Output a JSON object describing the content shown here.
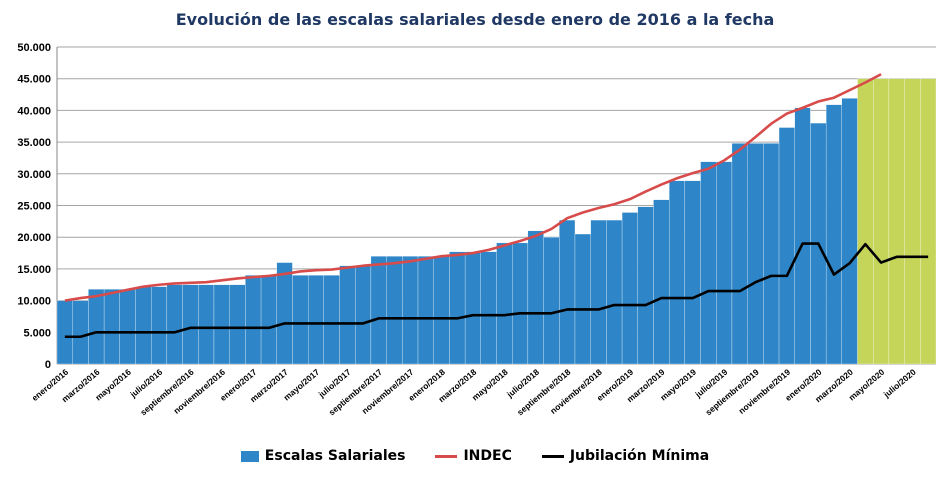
{
  "chart_data": {
    "type": "bar",
    "title": "Evolución de las escalas salariales desde enero de 2016 a la fecha",
    "xlabel": "",
    "ylabel": "",
    "ylim": [
      0,
      50000
    ],
    "yticks": [
      "0",
      "5.000",
      "10.000",
      "15.000",
      "20.000",
      "25.000",
      "30.000",
      "35.000",
      "40.000",
      "45.000",
      "50.000"
    ],
    "y_tick_values": [
      0,
      5000,
      10000,
      15000,
      20000,
      25000,
      30000,
      35000,
      40000,
      45000,
      50000
    ],
    "grid": true,
    "legend_position": "bottom",
    "categories": [
      "enero/2016",
      "febrero/2016",
      "marzo/2016",
      "abril/2016",
      "mayo/2016",
      "junio/2016",
      "julio/2016",
      "agosto/2016",
      "septiembre/2016",
      "octubre/2016",
      "noviembre/2016",
      "diciembre/2016",
      "enero/2017",
      "febrero/2017",
      "marzo/2017",
      "abril/2017",
      "mayo/2017",
      "junio/2017",
      "julio/2017",
      "agosto/2017",
      "septiembre/2017",
      "octubre/2017",
      "noviembre/2017",
      "diciembre/2017",
      "enero/2018",
      "febrero/2018",
      "marzo/2018",
      "abril/2018",
      "mayo/2018",
      "junio/2018",
      "julio/2018",
      "agosto/2018",
      "septiembre/2018",
      "octubre/2018",
      "noviembre/2018",
      "diciembre/2018",
      "enero/2019",
      "febrero/2019",
      "marzo/2019",
      "abril/2019",
      "mayo/2019",
      "junio/2019",
      "julio/2019",
      "agosto/2019",
      "septiembre/2019",
      "octubre/2019",
      "noviembre/2019",
      "diciembre/2019",
      "enero/2020",
      "febrero/2020",
      "marzo/2020",
      "abril/2020",
      "mayo/2020",
      "junio/2020",
      "julio/2020",
      "agosto/2020"
    ],
    "x_tick_labels": [
      "enero/2016",
      "marzo/2016",
      "mayo/2016",
      "julio/2016",
      "septiembre/2016",
      "noviembre/2016",
      "enero/2017",
      "marzo/2017",
      "mayo/2017",
      "julio/2017",
      "septiembre/2017",
      "noviembre/2017",
      "enero/2018",
      "marzo/2018",
      "mayo/2018",
      "julio/2018",
      "septiembre/2018",
      "noviembre/2018",
      "enero/2019",
      "marzo/2019",
      "mayo/2019",
      "julio/2019",
      "septiembre/2019",
      "noviembre/2019",
      "enero/2020",
      "marzo/2020",
      "mayo/2020",
      "julio/2020"
    ],
    "series": [
      {
        "name": "Escalas Salariales",
        "type": "bar",
        "color": "#2e86c8",
        "values": [
          10000,
          10000,
          11800,
          11800,
          11800,
          12200,
          12200,
          12500,
          12500,
          12500,
          12500,
          12500,
          14000,
          14000,
          16000,
          14000,
          14000,
          14000,
          15500,
          15500,
          17000,
          17000,
          17000,
          17000,
          17000,
          17700,
          17700,
          17700,
          19100,
          19100,
          21000,
          20000,
          22700,
          20500,
          22700,
          22700,
          23900,
          24800,
          25900,
          28900,
          28900,
          31900,
          31900,
          34800,
          34800,
          34800,
          37300,
          40400,
          38000,
          40900,
          41900,
          null,
          null,
          null,
          null,
          null
        ]
      },
      {
        "name": "Forecast",
        "type": "bar",
        "color": "#c4d55a",
        "values": [
          null,
          null,
          null,
          null,
          null,
          null,
          null,
          null,
          null,
          null,
          null,
          null,
          null,
          null,
          null,
          null,
          null,
          null,
          null,
          null,
          null,
          null,
          null,
          null,
          null,
          null,
          null,
          null,
          null,
          null,
          null,
          null,
          null,
          null,
          null,
          null,
          null,
          null,
          null,
          null,
          null,
          null,
          null,
          null,
          null,
          null,
          null,
          null,
          null,
          null,
          null,
          45000,
          45000,
          45000,
          45000,
          45000
        ]
      },
      {
        "name": "INDEC",
        "type": "line",
        "color": "#d84b4b",
        "values": [
          10000,
          10400,
          10700,
          11200,
          11700,
          12200,
          12500,
          12700,
          12800,
          12900,
          13200,
          13500,
          13700,
          13900,
          14200,
          14600,
          14800,
          14900,
          15200,
          15500,
          15700,
          15900,
          16200,
          16600,
          17000,
          17200,
          17500,
          18000,
          18700,
          19400,
          20200,
          21300,
          23000,
          23900,
          24600,
          25200,
          26000,
          27200,
          28300,
          29300,
          30100,
          30800,
          32100,
          33800,
          35800,
          37900,
          39500,
          40400,
          41400,
          42000,
          43200,
          44400,
          45700,
          null,
          null,
          null
        ]
      },
      {
        "name": "Jubilación Mínima",
        "type": "line",
        "color": "#000000",
        "values": [
          4300,
          4300,
          5000,
          5000,
          5000,
          5000,
          5000,
          5000,
          5700,
          5700,
          5700,
          5700,
          5700,
          5700,
          6400,
          6400,
          6400,
          6400,
          6400,
          6400,
          7200,
          7200,
          7200,
          7200,
          7200,
          7200,
          7700,
          7700,
          7700,
          8000,
          8000,
          8000,
          8600,
          8600,
          8600,
          9300,
          9300,
          9300,
          10400,
          10400,
          10400,
          11500,
          11500,
          11500,
          12900,
          13900,
          13900,
          19000,
          19000,
          14100,
          15900,
          18900,
          16000,
          16900,
          16900,
          16900
        ]
      }
    ]
  }
}
